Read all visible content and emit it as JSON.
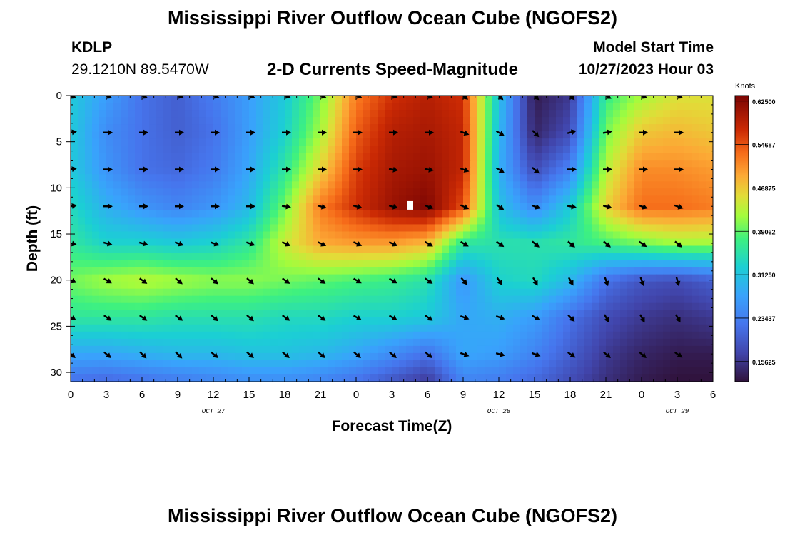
{
  "header": {
    "title": "Mississippi River Outflow Ocean Cube (NGOFS2)",
    "station_id": "KDLP",
    "station_coords": "29.1210N  89.5470W",
    "subtitle": "2-D Currents Speed-Magnitude",
    "start_label": "Model Start Time",
    "start_value": "10/27/2023 Hour 03"
  },
  "footer": {
    "title": "Mississippi River Outflow Ocean Cube (NGOFS2)"
  },
  "chart_data": {
    "type": "heatmap",
    "title": "2-D Currents Speed-Magnitude",
    "xlabel": "Forecast Time(Z)",
    "ylabel": "Depth (ft)",
    "x_tick_labels": [
      "0",
      "3",
      "6",
      "9",
      "12",
      "15",
      "18",
      "21",
      "0",
      "3",
      "6",
      "9",
      "12",
      "15",
      "18",
      "21",
      "0",
      "3",
      "6"
    ],
    "date_labels": [
      {
        "label": "OCT 27",
        "hour": 12
      },
      {
        "label": "OCT 28",
        "hour": 36
      },
      {
        "label": "OCT 29",
        "hour": 51
      }
    ],
    "xlim_hours": [
      0,
      54
    ],
    "ylim_ft": [
      0,
      31
    ],
    "y_ticks": [
      0,
      5,
      10,
      15,
      20,
      25,
      30
    ],
    "y_inverted": true,
    "colorbar": {
      "label": "Knots",
      "min": 0.12,
      "max": 0.635,
      "ticks": [
        "0.62500",
        "0.54687",
        "0.46875",
        "0.39062",
        "0.31250",
        "0.23437",
        "0.15625"
      ],
      "tick_values": [
        0.625,
        0.54687,
        0.46875,
        0.39062,
        0.3125,
        0.23437,
        0.15625
      ]
    },
    "grid_hours": [
      0,
      3,
      6,
      9,
      12,
      15,
      18,
      21,
      24,
      27,
      30,
      33,
      36,
      39,
      42,
      45,
      48,
      51,
      54
    ],
    "grid_depths_ft": [
      0,
      4,
      8,
      12,
      16,
      20,
      24,
      28,
      31
    ],
    "speed_knots": [
      [
        0.32,
        0.27,
        0.22,
        0.2,
        0.23,
        0.27,
        0.32,
        0.4,
        0.52,
        0.57,
        0.59,
        0.57,
        0.31,
        0.13,
        0.16,
        0.37,
        0.42,
        0.45,
        0.45
      ],
      [
        0.32,
        0.25,
        0.22,
        0.2,
        0.22,
        0.27,
        0.33,
        0.42,
        0.54,
        0.59,
        0.6,
        0.58,
        0.3,
        0.14,
        0.18,
        0.4,
        0.47,
        0.48,
        0.47
      ],
      [
        0.32,
        0.26,
        0.22,
        0.21,
        0.23,
        0.28,
        0.36,
        0.46,
        0.56,
        0.6,
        0.61,
        0.58,
        0.29,
        0.18,
        0.24,
        0.43,
        0.51,
        0.51,
        0.5
      ],
      [
        0.34,
        0.29,
        0.26,
        0.24,
        0.26,
        0.3,
        0.4,
        0.52,
        0.57,
        0.61,
        0.63,
        0.55,
        0.31,
        0.25,
        0.32,
        0.46,
        0.53,
        0.53,
        0.52
      ],
      [
        0.36,
        0.33,
        0.33,
        0.32,
        0.33,
        0.36,
        0.44,
        0.49,
        0.5,
        0.5,
        0.48,
        0.36,
        0.35,
        0.35,
        0.36,
        0.38,
        0.4,
        0.42,
        0.42
      ],
      [
        0.4,
        0.42,
        0.43,
        0.42,
        0.41,
        0.41,
        0.4,
        0.39,
        0.38,
        0.37,
        0.35,
        0.26,
        0.33,
        0.34,
        0.3,
        0.22,
        0.19,
        0.18,
        0.2
      ],
      [
        0.36,
        0.36,
        0.36,
        0.35,
        0.35,
        0.35,
        0.34,
        0.34,
        0.33,
        0.33,
        0.32,
        0.28,
        0.29,
        0.27,
        0.22,
        0.18,
        0.16,
        0.15,
        0.16
      ],
      [
        0.28,
        0.28,
        0.29,
        0.3,
        0.3,
        0.31,
        0.31,
        0.3,
        0.28,
        0.25,
        0.22,
        0.28,
        0.27,
        0.24,
        0.2,
        0.16,
        0.14,
        0.13,
        0.13
      ],
      [
        0.22,
        0.21,
        0.22,
        0.23,
        0.24,
        0.25,
        0.25,
        0.24,
        0.22,
        0.19,
        0.16,
        0.24,
        0.23,
        0.21,
        0.18,
        0.15,
        0.13,
        0.12,
        0.12
      ]
    ],
    "arrow_hours": [
      0,
      3,
      6,
      9,
      12,
      15,
      18,
      21,
      24,
      27,
      30,
      33,
      36,
      39,
      42,
      45,
      48,
      51
    ],
    "arrow_depths_ft": [
      0,
      4,
      8,
      12,
      16,
      20,
      24,
      28
    ],
    "arrow_direction_deg": [
      [
        25,
        25,
        25,
        20,
        20,
        20,
        20,
        20,
        20,
        20,
        25,
        40,
        45,
        45,
        45,
        30,
        25,
        25
      ],
      [
        -10,
        0,
        0,
        0,
        0,
        0,
        0,
        0,
        0,
        0,
        0,
        20,
        30,
        45,
        -15,
        -10,
        0,
        0
      ],
      [
        -10,
        0,
        0,
        0,
        0,
        0,
        0,
        0,
        0,
        10,
        10,
        20,
        30,
        40,
        0,
        0,
        0,
        0
      ],
      [
        -10,
        0,
        0,
        0,
        0,
        0,
        10,
        15,
        15,
        15,
        20,
        25,
        35,
        20,
        10,
        15,
        20,
        20
      ],
      [
        15,
        15,
        15,
        20,
        20,
        20,
        25,
        25,
        25,
        25,
        30,
        30,
        35,
        40,
        40,
        40,
        35,
        40
      ],
      [
        25,
        30,
        35,
        40,
        40,
        40,
        35,
        35,
        30,
        30,
        35,
        50,
        55,
        60,
        60,
        70,
        70,
        75
      ],
      [
        30,
        35,
        35,
        35,
        40,
        40,
        35,
        35,
        30,
        30,
        35,
        20,
        20,
        30,
        45,
        60,
        60,
        60
      ],
      [
        40,
        40,
        45,
        45,
        40,
        40,
        40,
        40,
        40,
        40,
        40,
        20,
        15,
        20,
        35,
        40,
        40,
        35
      ]
    ],
    "missing_cell": {
      "hour": 28.5,
      "depth_ft": 11.9
    }
  }
}
